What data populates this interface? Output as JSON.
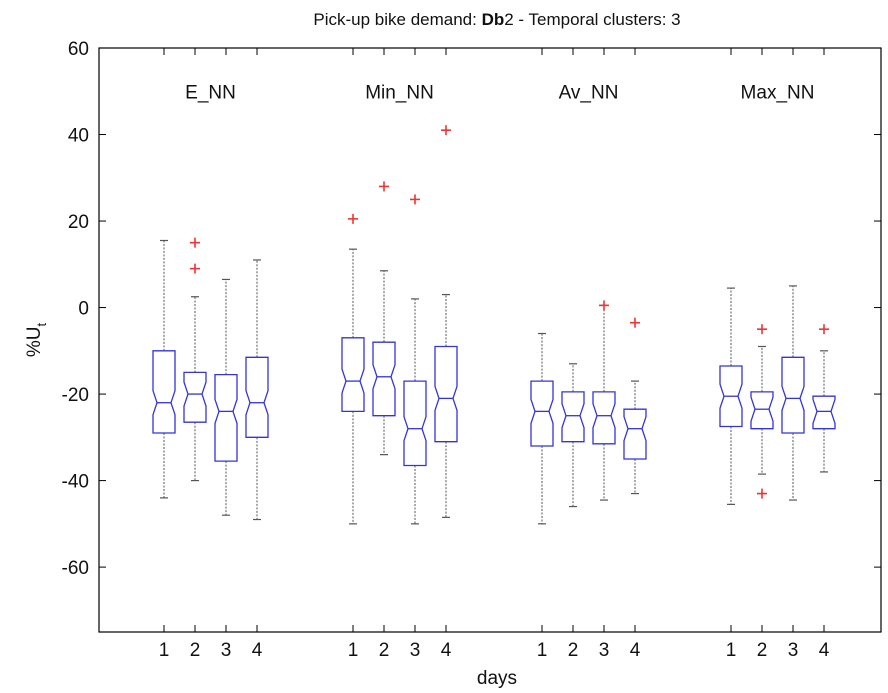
{
  "chart_data": {
    "type": "boxplot",
    "title": {
      "before": "Pick-up bike demand: ",
      "bold": "Db",
      "after": "2  -  Temporal clusters: 3"
    },
    "ylabel": {
      "main": "%U",
      "sub": "t"
    },
    "xlabel": "days",
    "ylim": [
      -75,
      60
    ],
    "yticks": [
      60,
      40,
      20,
      0,
      -20,
      -40,
      -60
    ],
    "grid": false,
    "colors": {
      "box": "#3333dd",
      "whisker": "#555555",
      "outlier": "#ee3333",
      "axis": "#000000"
    },
    "groups": [
      {
        "name": "E_NN",
        "days": [
          {
            "day": "1",
            "whisker_low": -44,
            "q1": -29,
            "median": -22,
            "q3": -10,
            "whisker_high": 15.5,
            "outliers": []
          },
          {
            "day": "2",
            "whisker_low": -40,
            "q1": -26.5,
            "median": -20,
            "q3": -15,
            "whisker_high": 2.5,
            "outliers": [
              15,
              9
            ]
          },
          {
            "day": "3",
            "whisker_low": -48,
            "q1": -35.5,
            "median": -24,
            "q3": -15.5,
            "whisker_high": 6.5,
            "outliers": []
          },
          {
            "day": "4",
            "whisker_low": -49,
            "q1": -30,
            "median": -22,
            "q3": -11.5,
            "whisker_high": 11,
            "outliers": []
          }
        ]
      },
      {
        "name": "Min_NN",
        "days": [
          {
            "day": "1",
            "whisker_low": -50,
            "q1": -24,
            "median": -17,
            "q3": -7,
            "whisker_high": 13.5,
            "outliers": [
              20.5
            ]
          },
          {
            "day": "2",
            "whisker_low": -34,
            "q1": -25,
            "median": -16,
            "q3": -8,
            "whisker_high": 8.5,
            "outliers": [
              28
            ]
          },
          {
            "day": "3",
            "whisker_low": -50,
            "q1": -36.5,
            "median": -28,
            "q3": -17,
            "whisker_high": 2,
            "outliers": [
              25
            ]
          },
          {
            "day": "4",
            "whisker_low": -48.5,
            "q1": -31,
            "median": -21,
            "q3": -9,
            "whisker_high": 3,
            "outliers": [
              41
            ]
          }
        ]
      },
      {
        "name": "Av_NN",
        "days": [
          {
            "day": "1",
            "whisker_low": -50,
            "q1": -32,
            "median": -24,
            "q3": -17,
            "whisker_high": -6,
            "outliers": []
          },
          {
            "day": "2",
            "whisker_low": -46,
            "q1": -31,
            "median": -25,
            "q3": -19.5,
            "whisker_high": -13,
            "outliers": []
          },
          {
            "day": "3",
            "whisker_low": -44.5,
            "q1": -31.5,
            "median": -25,
            "q3": -19.5,
            "whisker_high": 0.5,
            "outliers": [
              0.5
            ]
          },
          {
            "day": "4",
            "whisker_low": -43,
            "q1": -35,
            "median": -28,
            "q3": -23.5,
            "whisker_high": -17,
            "outliers": [
              -3.5
            ]
          }
        ]
      },
      {
        "name": "Max_NN",
        "days": [
          {
            "day": "1",
            "whisker_low": -45.5,
            "q1": -27.5,
            "median": -20.5,
            "q3": -13.5,
            "whisker_high": 4.5,
            "outliers": []
          },
          {
            "day": "2",
            "whisker_low": -38.5,
            "q1": -28,
            "median": -23.5,
            "q3": -19.5,
            "whisker_high": -9,
            "outliers": [
              -5,
              -43
            ]
          },
          {
            "day": "3",
            "whisker_low": -44.5,
            "q1": -29,
            "median": -21,
            "q3": -11.5,
            "whisker_high": 5,
            "outliers": []
          },
          {
            "day": "4",
            "whisker_low": -38,
            "q1": -28,
            "median": -24,
            "q3": -20.5,
            "whisker_high": -10,
            "outliers": [
              -5
            ]
          }
        ]
      }
    ]
  }
}
